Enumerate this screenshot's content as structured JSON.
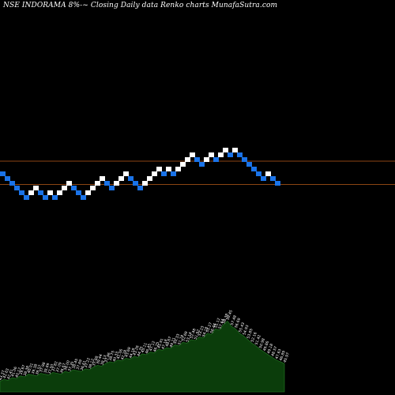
{
  "chart_data": {
    "type": "renko",
    "title": "NSE INDORAMA 8%-~ Closing Daily data  Renko  charts MunafaSutra.com",
    "colors": {
      "background": "#000000",
      "up_brick": "#ffffff",
      "down_brick": "#1a73e8",
      "reference_lines": "#8b4513",
      "volume_area": "#0b3d0b",
      "volume_outline": "#1f6b1f",
      "volume_labels": "#ffffff"
    },
    "reference_lines": [
      "upper",
      "lower"
    ],
    "bricks": [
      {
        "dir": "down",
        "level": 50.4
      },
      {
        "dir": "down",
        "level": 49.8
      },
      {
        "dir": "down",
        "level": 49.2
      },
      {
        "dir": "down",
        "level": 48.6
      },
      {
        "dir": "down",
        "level": 48.0
      },
      {
        "dir": "down",
        "level": 47.4
      },
      {
        "dir": "up",
        "level": 48.0
      },
      {
        "dir": "up",
        "level": 48.6
      },
      {
        "dir": "down",
        "level": 48.0
      },
      {
        "dir": "down",
        "level": 47.4
      },
      {
        "dir": "up",
        "level": 48.0
      },
      {
        "dir": "down",
        "level": 47.4
      },
      {
        "dir": "up",
        "level": 48.0
      },
      {
        "dir": "up",
        "level": 48.6
      },
      {
        "dir": "up",
        "level": 49.2
      },
      {
        "dir": "down",
        "level": 48.6
      },
      {
        "dir": "down",
        "level": 48.0
      },
      {
        "dir": "down",
        "level": 47.4
      },
      {
        "dir": "up",
        "level": 48.0
      },
      {
        "dir": "up",
        "level": 48.6
      },
      {
        "dir": "up",
        "level": 49.2
      },
      {
        "dir": "up",
        "level": 49.8
      },
      {
        "dir": "down",
        "level": 49.2
      },
      {
        "dir": "down",
        "level": 48.6
      },
      {
        "dir": "up",
        "level": 49.2
      },
      {
        "dir": "up",
        "level": 49.8
      },
      {
        "dir": "up",
        "level": 50.4
      },
      {
        "dir": "down",
        "level": 49.8
      },
      {
        "dir": "down",
        "level": 49.2
      },
      {
        "dir": "down",
        "level": 48.6
      },
      {
        "dir": "up",
        "level": 49.2
      },
      {
        "dir": "up",
        "level": 49.8
      },
      {
        "dir": "up",
        "level": 50.4
      },
      {
        "dir": "up",
        "level": 51.0
      },
      {
        "dir": "down",
        "level": 50.4
      },
      {
        "dir": "up",
        "level": 51.0
      },
      {
        "dir": "down",
        "level": 50.4
      },
      {
        "dir": "up",
        "level": 51.0
      },
      {
        "dir": "up",
        "level": 51.6
      },
      {
        "dir": "up",
        "level": 52.2
      },
      {
        "dir": "up",
        "level": 52.8
      },
      {
        "dir": "down",
        "level": 52.2
      },
      {
        "dir": "down",
        "level": 51.6
      },
      {
        "dir": "up",
        "level": 52.2
      },
      {
        "dir": "up",
        "level": 52.8
      },
      {
        "dir": "down",
        "level": 52.2
      },
      {
        "dir": "up",
        "level": 52.8
      },
      {
        "dir": "up",
        "level": 53.4
      },
      {
        "dir": "down",
        "level": 52.8
      },
      {
        "dir": "up",
        "level": 53.4
      },
      {
        "dir": "down",
        "level": 52.8
      },
      {
        "dir": "down",
        "level": 52.2
      },
      {
        "dir": "down",
        "level": 51.6
      },
      {
        "dir": "down",
        "level": 51.0
      },
      {
        "dir": "down",
        "level": 50.4
      },
      {
        "dir": "down",
        "level": 49.8
      },
      {
        "dir": "up",
        "level": 50.4
      },
      {
        "dir": "down",
        "level": 49.8
      },
      {
        "dir": "down",
        "level": 49.2
      }
    ],
    "volume_labels": [
      "43.37",
      "42.63",
      "42.41",
      "41.06",
      "40.12",
      "39.67",
      "38.38",
      "40.01",
      "39.38",
      "38.57",
      "37.98",
      "38.89",
      "37.50",
      "37.82",
      "37.09",
      "36.67",
      "38.00",
      "37.35",
      "38.45",
      "37.69",
      "36.61",
      "37.22",
      "38.12",
      "37.88",
      "39.44",
      "38.13",
      "37.46",
      "38.75",
      "40.33",
      "41.06",
      "42.28",
      "43.69",
      "44.18",
      "43.26",
      "44.75",
      "45.11",
      "46.45",
      "47.12",
      "46.25",
      "45.91",
      "47.18",
      "48.67",
      "49.21",
      "50.33",
      "51.74",
      "52.69",
      "53.14",
      "52.48",
      "51.92",
      "53.23",
      "54.18",
      "55.27",
      "56.44",
      "55.12",
      "57.64",
      "58.38",
      "59.45",
      "57.48",
      "56.69",
      "55.43",
      "54.93",
      "53.85",
      "52.16",
      "51.42",
      "50.98",
      "49.86",
      "49.18",
      "48.57",
      "47.63",
      "46.89",
      "45.97"
    ],
    "volume_profile": [
      0.12,
      0.14,
      0.13,
      0.16,
      0.15,
      0.18,
      0.17,
      0.2,
      0.19,
      0.18,
      0.21,
      0.2,
      0.19,
      0.22,
      0.21,
      0.2,
      0.23,
      0.22,
      0.25,
      0.24,
      0.23,
      0.26,
      0.25,
      0.28,
      0.3,
      0.29,
      0.32,
      0.34,
      0.33,
      0.36,
      0.35,
      0.38,
      0.37,
      0.4,
      0.39,
      0.43,
      0.42,
      0.45,
      0.44,
      0.48,
      0.47,
      0.5,
      0.49,
      0.53,
      0.52,
      0.56,
      0.55,
      0.59,
      0.58,
      0.62,
      0.61,
      0.66,
      0.65,
      0.71,
      0.7,
      0.76,
      0.8,
      0.74,
      0.71,
      0.66,
      0.63,
      0.59,
      0.55,
      0.52,
      0.48,
      0.45,
      0.42,
      0.39,
      0.36,
      0.34,
      0.32
    ]
  }
}
